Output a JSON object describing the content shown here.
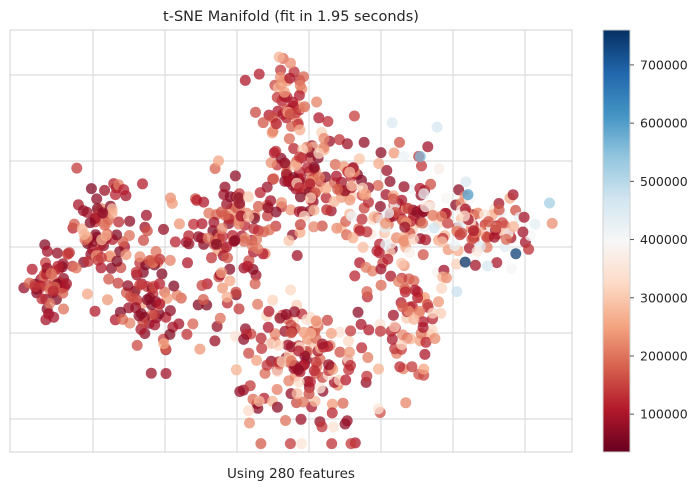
{
  "chart_data": {
    "type": "scatter",
    "title": "t-SNE Manifold (fit in 1.95 seconds)",
    "xlabel": "Using 280 features",
    "ylabel": "",
    "grid": true,
    "legend": "colorbar-right",
    "colormap": "RdBu",
    "colormap_stops": [
      "#67001f",
      "#b2182b",
      "#d6604d",
      "#f4a582",
      "#fddbc7",
      "#f7f7f7",
      "#d1e5f0",
      "#92c5de",
      "#4393c3",
      "#2166ac",
      "#053061"
    ],
    "colorbar": {
      "min": 35000,
      "max": 760000,
      "ticks": [
        "100000",
        "200000",
        "300000",
        "400000",
        "500000",
        "600000",
        "700000"
      ],
      "tick_values": [
        100000,
        200000,
        300000,
        400000,
        500000,
        600000,
        700000
      ]
    },
    "point_alpha": 0.75,
    "clusters": [
      {
        "name": "far-left",
        "cx": 0.07,
        "cy": 0.41,
        "sx": 0.022,
        "sy": 0.04,
        "n": 50,
        "vmin": 60000,
        "vmax": 220000
      },
      {
        "name": "left-2",
        "cx": 0.165,
        "cy": 0.52,
        "sx": 0.03,
        "sy": 0.06,
        "n": 70,
        "vmin": 60000,
        "vmax": 300000
      },
      {
        "name": "left-3",
        "cx": 0.245,
        "cy": 0.38,
        "sx": 0.04,
        "sy": 0.08,
        "n": 90,
        "vmin": 60000,
        "vmax": 260000
      },
      {
        "name": "left-center",
        "cx": 0.38,
        "cy": 0.5,
        "sx": 0.04,
        "sy": 0.09,
        "n": 110,
        "vmin": 60000,
        "vmax": 280000
      },
      {
        "name": "top-center",
        "cx": 0.49,
        "cy": 0.83,
        "sx": 0.025,
        "sy": 0.05,
        "n": 55,
        "vmin": 100000,
        "vmax": 300000
      },
      {
        "name": "upper-center",
        "cx": 0.53,
        "cy": 0.64,
        "sx": 0.06,
        "sy": 0.06,
        "n": 130,
        "vmin": 60000,
        "vmax": 320000
      },
      {
        "name": "bottom-center",
        "cx": 0.52,
        "cy": 0.22,
        "sx": 0.065,
        "sy": 0.08,
        "n": 170,
        "vmin": 70000,
        "vmax": 360000
      },
      {
        "name": "right-center",
        "cx": 0.69,
        "cy": 0.55,
        "sx": 0.05,
        "sy": 0.07,
        "n": 120,
        "vmin": 70000,
        "vmax": 440000
      },
      {
        "name": "right-lower",
        "cx": 0.72,
        "cy": 0.3,
        "sx": 0.03,
        "sy": 0.07,
        "n": 60,
        "vmin": 100000,
        "vmax": 320000
      },
      {
        "name": "far-right",
        "cx": 0.84,
        "cy": 0.53,
        "sx": 0.05,
        "sy": 0.04,
        "n": 95,
        "vmin": 90000,
        "vmax": 480000
      }
    ],
    "highlights": [
      {
        "x": 0.73,
        "y": 0.7,
        "value": 560000
      },
      {
        "x": 0.815,
        "y": 0.61,
        "value": 600000
      },
      {
        "x": 0.81,
        "y": 0.45,
        "value": 760000
      },
      {
        "x": 0.9,
        "y": 0.47,
        "value": 740000
      },
      {
        "x": 0.96,
        "y": 0.59,
        "value": 520000
      },
      {
        "x": 0.795,
        "y": 0.38,
        "value": 480000
      },
      {
        "x": 0.76,
        "y": 0.77,
        "value": 460000
      },
      {
        "x": 0.68,
        "y": 0.78,
        "value": 450000
      },
      {
        "x": 0.7,
        "y": 0.7,
        "value": 420000
      }
    ]
  }
}
